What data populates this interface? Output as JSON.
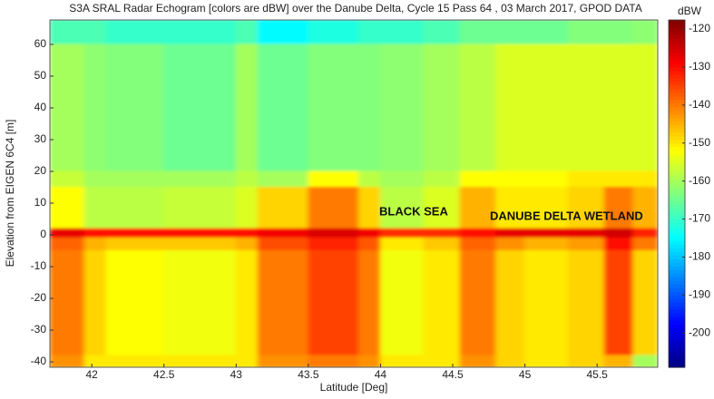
{
  "chart_data": {
    "type": "heatmap",
    "title": "S3A SRAL Radar Echogram [colors are dBW] over the Danube Delta, Cycle 15 Pass 64 , 03 March 2017, GPOD DATA",
    "xlabel": "Latitude [Deg]",
    "ylabel": "Elevation from EIGEN 6C4 [m]",
    "colorbar_label": "dBW",
    "colormap": "jet",
    "annotations": [
      "BLACK SEA",
      "DANUBE DELTA WETLAND"
    ],
    "xlim": [
      41.71,
      45.92
    ],
    "ylim": [
      -41.7,
      67.7
    ],
    "clim": [
      -209,
      -117.6
    ],
    "xticks": [
      42,
      42.5,
      43,
      43.5,
      44,
      44.5,
      45,
      45.5
    ],
    "yticks": [
      -40,
      -30,
      -20,
      -10,
      0,
      10,
      20,
      30,
      40,
      50,
      60
    ],
    "cticks": [
      -200,
      -190,
      -180,
      -170,
      -160,
      -150,
      -140,
      -130,
      -120
    ],
    "x_edges": [
      41.71,
      41.95,
      42.1,
      42.5,
      43.0,
      43.15,
      43.5,
      43.85,
      44.0,
      44.3,
      44.55,
      44.8,
      45.0,
      45.3,
      45.55,
      45.75,
      45.92
    ],
    "y_edges": [
      67.7,
      60,
      20,
      15,
      2,
      -1,
      -5,
      -38,
      -41.7
    ],
    "z": [
      [
        -168,
        -168,
        -170,
        -170,
        -168,
        -175,
        -172,
        -170,
        -170,
        -168,
        -165,
        -165,
        -165,
        -163,
        -163,
        -162
      ],
      [
        -160,
        -162,
        -163,
        -165,
        -160,
        -165,
        -163,
        -163,
        -162,
        -160,
        -158,
        -155,
        -155,
        -155,
        -155,
        -155
      ],
      [
        -157,
        -160,
        -160,
        -160,
        -158,
        -160,
        -152,
        -158,
        -160,
        -158,
        -152,
        -152,
        -152,
        -150,
        -150,
        -150
      ],
      [
        -152,
        -158,
        -158,
        -157,
        -155,
        -148,
        -140,
        -148,
        -158,
        -155,
        -145,
        -150,
        -150,
        -148,
        -140,
        -145
      ],
      [
        -127,
        -130,
        -130,
        -130,
        -130,
        -128,
        -126,
        -128,
        -133,
        -133,
        -130,
        -127,
        -127,
        -127,
        -125,
        -132
      ],
      [
        -138,
        -145,
        -147,
        -147,
        -145,
        -136,
        -132,
        -137,
        -150,
        -147,
        -138,
        -142,
        -145,
        -143,
        -130,
        -140
      ],
      [
        -140,
        -148,
        -152,
        -153,
        -150,
        -140,
        -135,
        -140,
        -153,
        -150,
        -140,
        -148,
        -150,
        -148,
        -135,
        -148
      ],
      [
        -142,
        -150,
        -150,
        -150,
        -150,
        -142,
        -140,
        -142,
        -150,
        -150,
        -142,
        -148,
        -150,
        -148,
        -145,
        -160
      ]
    ]
  }
}
